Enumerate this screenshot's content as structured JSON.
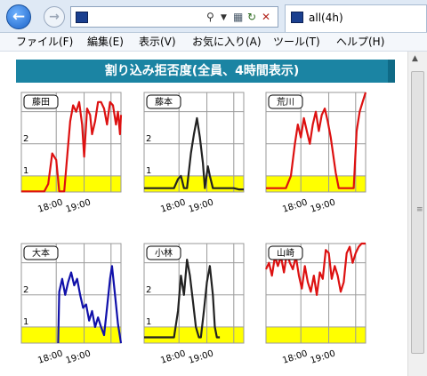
{
  "browser": {
    "tab_title": "all(4h)",
    "address": {
      "value": "",
      "placeholder": ""
    }
  },
  "menu": {
    "items": [
      {
        "label": "ファイル(F)"
      },
      {
        "label": "編集(E)"
      },
      {
        "label": "表示(V)"
      },
      {
        "label": "お気に入り(A)"
      },
      {
        "label": "ツール(T)"
      },
      {
        "label": "ヘルプ(H)"
      }
    ]
  },
  "page": {
    "header": "割り込み拒否度(全員、4時間表示)"
  },
  "colors": {
    "threshold_band": "#ffff00",
    "header_banner": "#1b84a3",
    "fujita": "#dd1111",
    "fujimoto": "#222222",
    "arakawa": "#dd1111",
    "omoto": "#1111aa",
    "kobayashi": "#222222",
    "yamazaki": "#dd1111"
  },
  "icons": {
    "back": "back-arrow-icon",
    "forward": "forward-arrow-icon",
    "search": "search-icon",
    "refresh": "refresh-icon",
    "stop": "stop-icon",
    "scroll_up": "scroll-up-arrow-icon"
  },
  "chart_data": [
    {
      "type": "line",
      "name": "藤田",
      "color": "#dd1111",
      "ylim": [
        0.5,
        3.6
      ],
      "threshold_band": [
        0.5,
        1.0
      ],
      "yticks": [
        "1",
        "2"
      ],
      "xticks": [
        "18:00",
        "19:00"
      ],
      "values": [
        [
          0,
          0.52
        ],
        [
          0.23,
          0.52
        ],
        [
          0.27,
          0.75
        ],
        [
          0.31,
          1.7
        ],
        [
          0.35,
          1.5
        ],
        [
          0.38,
          0.52
        ],
        [
          0.43,
          0.52
        ],
        [
          0.46,
          1.6
        ],
        [
          0.49,
          2.7
        ],
        [
          0.52,
          3.2
        ],
        [
          0.55,
          3.0
        ],
        [
          0.58,
          3.3
        ],
        [
          0.61,
          2.6
        ],
        [
          0.63,
          1.6
        ],
        [
          0.66,
          3.1
        ],
        [
          0.69,
          2.9
        ],
        [
          0.71,
          2.3
        ],
        [
          0.74,
          2.7
        ],
        [
          0.77,
          3.3
        ],
        [
          0.8,
          3.3
        ],
        [
          0.83,
          3.1
        ],
        [
          0.86,
          2.6
        ],
        [
          0.89,
          3.3
        ],
        [
          0.92,
          3.2
        ],
        [
          0.95,
          2.6
        ],
        [
          0.97,
          3.0
        ],
        [
          0.99,
          2.3
        ],
        [
          1.0,
          2.9
        ]
      ]
    },
    {
      "type": "line",
      "name": "藤本",
      "color": "#222222",
      "ylim": [
        0.5,
        3.6
      ],
      "threshold_band": [
        0.5,
        1.0
      ],
      "yticks": [
        "1",
        "2"
      ],
      "xticks": [
        "18:00",
        "19:00"
      ],
      "values": [
        [
          0,
          0.62
        ],
        [
          0.3,
          0.62
        ],
        [
          0.34,
          0.9
        ],
        [
          0.37,
          1.0
        ],
        [
          0.4,
          0.62
        ],
        [
          0.43,
          0.62
        ],
        [
          0.47,
          1.7
        ],
        [
          0.5,
          2.3
        ],
        [
          0.53,
          2.8
        ],
        [
          0.56,
          2.2
        ],
        [
          0.59,
          1.4
        ],
        [
          0.61,
          0.62
        ],
        [
          0.64,
          1.3
        ],
        [
          0.66,
          1.0
        ],
        [
          0.69,
          0.62
        ],
        [
          0.9,
          0.62
        ],
        [
          0.95,
          0.58
        ],
        [
          1.0,
          0.58
        ]
      ]
    },
    {
      "type": "line",
      "name": "荒川",
      "color": "#dd1111",
      "ylim": [
        0.5,
        3.6
      ],
      "threshold_band": [
        0.5,
        1.0
      ],
      "yticks": [],
      "xticks": [
        "18:00",
        "19:00"
      ],
      "values": [
        [
          0,
          0.62
        ],
        [
          0.2,
          0.62
        ],
        [
          0.25,
          1.0
        ],
        [
          0.29,
          2.0
        ],
        [
          0.32,
          2.6
        ],
        [
          0.35,
          2.2
        ],
        [
          0.38,
          2.8
        ],
        [
          0.41,
          2.4
        ],
        [
          0.44,
          2.0
        ],
        [
          0.47,
          2.6
        ],
        [
          0.5,
          3.0
        ],
        [
          0.53,
          2.4
        ],
        [
          0.56,
          2.9
        ],
        [
          0.59,
          3.1
        ],
        [
          0.62,
          2.7
        ],
        [
          0.65,
          2.2
        ],
        [
          0.7,
          1.1
        ],
        [
          0.73,
          0.62
        ],
        [
          0.88,
          0.62
        ],
        [
          0.91,
          2.4
        ],
        [
          0.94,
          3.0
        ],
        [
          0.97,
          3.3
        ],
        [
          1.0,
          3.6
        ]
      ]
    },
    {
      "type": "line",
      "name": "大本",
      "color": "#1111aa",
      "ylim": [
        0.5,
        3.6
      ],
      "threshold_band": [
        0.5,
        1.0
      ],
      "yticks": [
        "1",
        "2"
      ],
      "xticks": [
        "18:00",
        "19:00"
      ],
      "values": [
        [
          0.37,
          0.5
        ],
        [
          0.38,
          2.1
        ],
        [
          0.41,
          2.5
        ],
        [
          0.44,
          2.0
        ],
        [
          0.47,
          2.4
        ],
        [
          0.5,
          2.7
        ],
        [
          0.53,
          2.3
        ],
        [
          0.56,
          2.5
        ],
        [
          0.59,
          2.0
        ],
        [
          0.62,
          1.6
        ],
        [
          0.65,
          1.7
        ],
        [
          0.68,
          1.2
        ],
        [
          0.71,
          1.5
        ],
        [
          0.74,
          1.0
        ],
        [
          0.77,
          1.3
        ],
        [
          0.8,
          1.0
        ],
        [
          0.83,
          0.75
        ],
        [
          0.86,
          1.6
        ],
        [
          0.89,
          2.5
        ],
        [
          0.91,
          2.9
        ],
        [
          0.94,
          2.0
        ],
        [
          0.97,
          1.1
        ],
        [
          1.0,
          0.5
        ]
      ]
    },
    {
      "type": "line",
      "name": "小林",
      "color": "#222222",
      "ylim": [
        0.5,
        3.6
      ],
      "threshold_band": [
        0.5,
        1.0
      ],
      "yticks": [
        "1",
        "2"
      ],
      "xticks": [
        "18:00",
        "19:00"
      ],
      "values": [
        [
          0,
          0.68
        ],
        [
          0.3,
          0.68
        ],
        [
          0.34,
          1.5
        ],
        [
          0.37,
          2.6
        ],
        [
          0.4,
          2.0
        ],
        [
          0.43,
          3.1
        ],
        [
          0.46,
          2.6
        ],
        [
          0.49,
          1.8
        ],
        [
          0.52,
          1.0
        ],
        [
          0.55,
          0.68
        ],
        [
          0.57,
          0.68
        ],
        [
          0.6,
          1.5
        ],
        [
          0.63,
          2.4
        ],
        [
          0.66,
          2.9
        ],
        [
          0.69,
          2.0
        ],
        [
          0.71,
          1.0
        ],
        [
          0.73,
          0.68
        ],
        [
          0.76,
          0.68
        ]
      ]
    },
    {
      "type": "line",
      "name": "山崎",
      "color": "#dd1111",
      "ylim": [
        0.5,
        3.6
      ],
      "threshold_band": [
        0.5,
        1.0
      ],
      "yticks": [],
      "xticks": [
        "18:00",
        "19:00"
      ],
      "values": [
        [
          0,
          2.8
        ],
        [
          0.03,
          3.0
        ],
        [
          0.06,
          2.6
        ],
        [
          0.09,
          3.2
        ],
        [
          0.12,
          2.9
        ],
        [
          0.15,
          3.2
        ],
        [
          0.18,
          2.7
        ],
        [
          0.21,
          3.3
        ],
        [
          0.24,
          3.0
        ],
        [
          0.27,
          2.8
        ],
        [
          0.3,
          3.2
        ],
        [
          0.33,
          2.6
        ],
        [
          0.36,
          2.2
        ],
        [
          0.39,
          2.9
        ],
        [
          0.42,
          2.4
        ],
        [
          0.45,
          2.1
        ],
        [
          0.48,
          2.6
        ],
        [
          0.51,
          2.0
        ],
        [
          0.54,
          2.7
        ],
        [
          0.57,
          2.5
        ],
        [
          0.6,
          3.4
        ],
        [
          0.63,
          3.3
        ],
        [
          0.66,
          2.5
        ],
        [
          0.69,
          2.9
        ],
        [
          0.72,
          2.6
        ],
        [
          0.75,
          2.1
        ],
        [
          0.78,
          2.4
        ],
        [
          0.81,
          3.3
        ],
        [
          0.84,
          3.5
        ],
        [
          0.87,
          3.0
        ],
        [
          0.9,
          3.3
        ],
        [
          0.93,
          3.5
        ],
        [
          0.96,
          3.6
        ],
        [
          1.0,
          3.6
        ]
      ]
    }
  ]
}
